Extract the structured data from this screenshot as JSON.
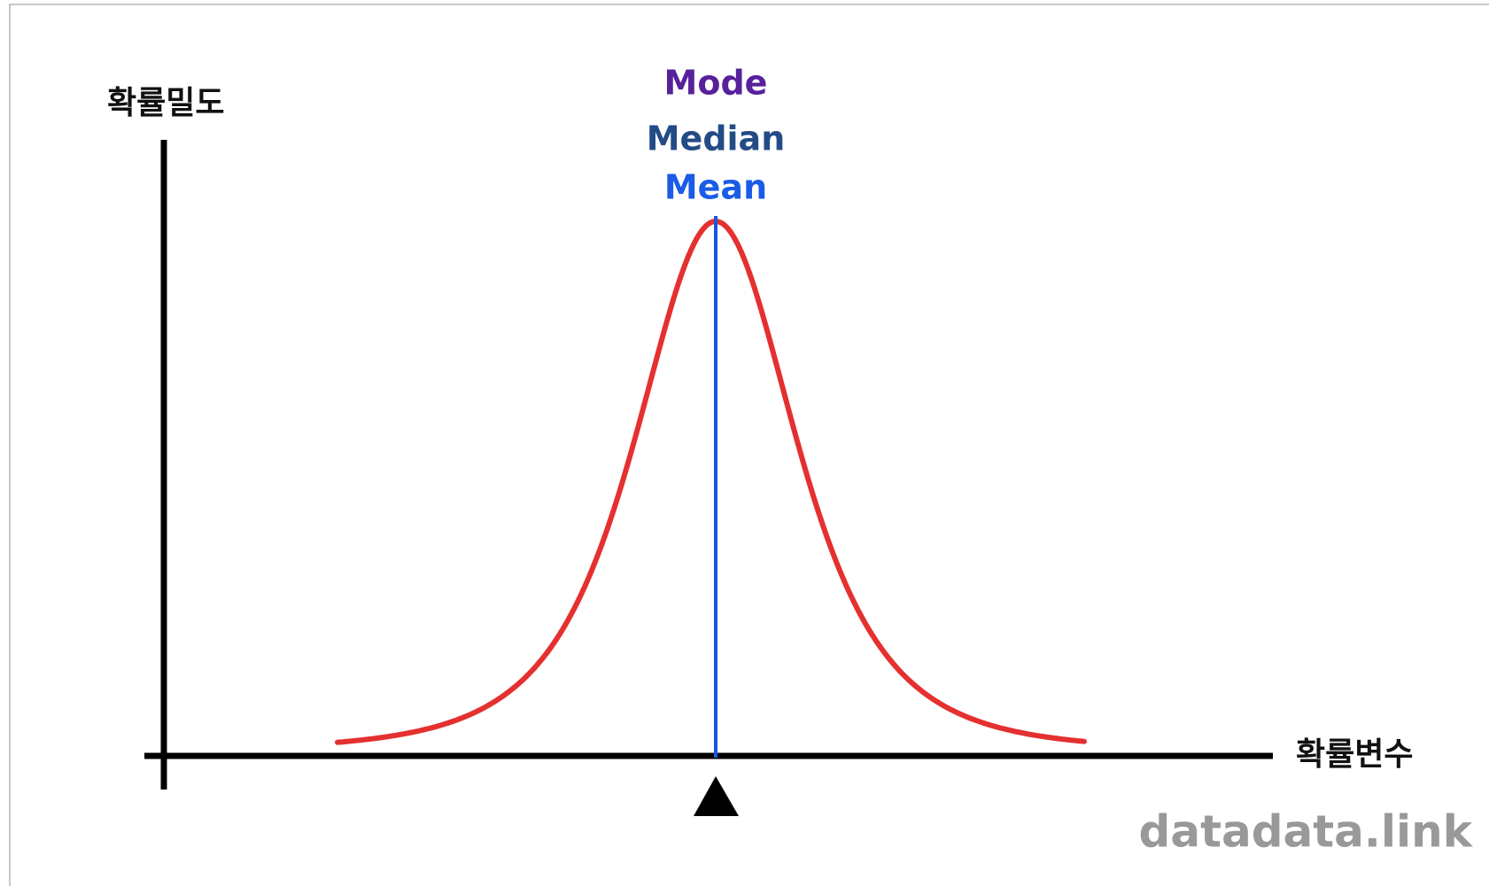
{
  "axes": {
    "y_label": "확률밀도",
    "x_label": "확률변수"
  },
  "markers": {
    "mode": "Mode",
    "median": "Median",
    "mean": "Mean"
  },
  "watermark": "datadata.link"
}
